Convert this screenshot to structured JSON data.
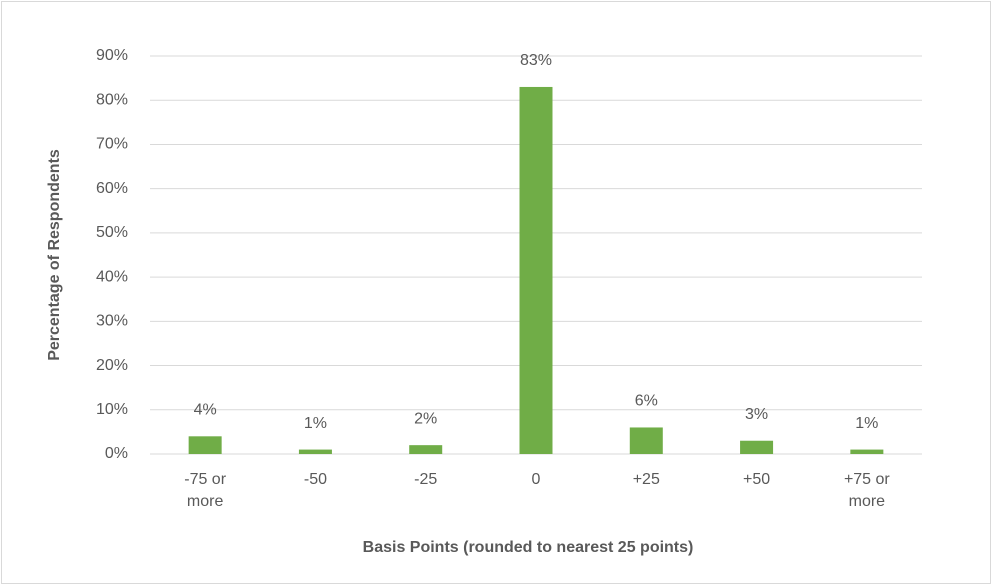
{
  "chart_data": {
    "type": "bar",
    "x_label": "Basis Points (rounded to nearest 25 points)",
    "y_label": "Percentage of Respondents",
    "categories": [
      "-75 or more",
      "-50",
      "-25",
      "0",
      "+25",
      "+50",
      "+75 or more"
    ],
    "values": [
      4,
      1,
      2,
      83,
      6,
      3,
      1
    ],
    "value_labels": [
      "4%",
      "1%",
      "2%",
      "83%",
      "6%",
      "3%",
      "1%"
    ],
    "color": "#70ad47",
    "ylim": [
      0,
      90
    ],
    "yticks": [
      {
        "value": 0,
        "label": "0%"
      },
      {
        "value": 10,
        "label": "10%"
      },
      {
        "value": 20,
        "label": "20%"
      },
      {
        "value": 30,
        "label": "30%"
      },
      {
        "value": 40,
        "label": "40%"
      },
      {
        "value": 50,
        "label": "50%"
      },
      {
        "value": 60,
        "label": "60%"
      },
      {
        "value": 70,
        "label": "70%"
      },
      {
        "value": 80,
        "label": "80%"
      },
      {
        "value": 90,
        "label": "90%"
      }
    ],
    "grid": true
  }
}
